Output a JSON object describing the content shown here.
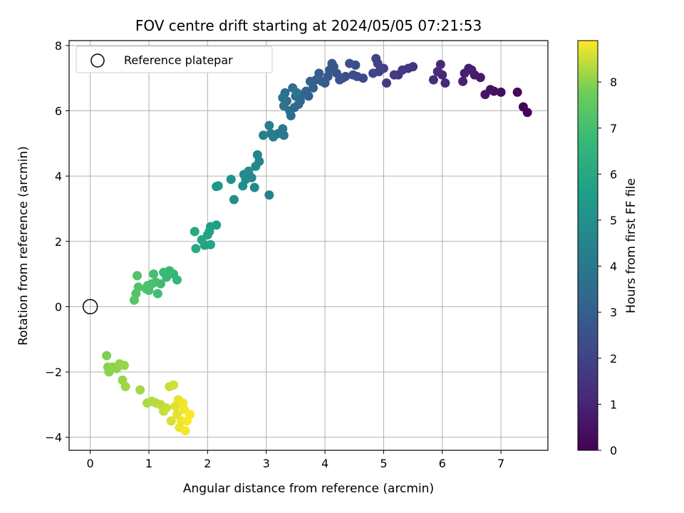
{
  "chart_data": {
    "type": "scatter",
    "title": "FOV centre drift starting at 2024/05/05 07:21:53",
    "xlabel": "Angular distance from reference (arcmin)",
    "ylabel": "Rotation from reference (arcmin)",
    "xlim": [
      -0.36,
      7.8
    ],
    "ylim": [
      -4.4,
      8.15
    ],
    "xticks": [
      0,
      1,
      2,
      3,
      4,
      5,
      6,
      7
    ],
    "yticks": [
      -4,
      -2,
      0,
      2,
      4,
      6,
      8
    ],
    "xtick_labels": [
      "0",
      "1",
      "2",
      "3",
      "4",
      "5",
      "6",
      "7"
    ],
    "ytick_labels": [
      "−4",
      "−2",
      "0",
      "2",
      "4",
      "6",
      "8"
    ],
    "grid": true,
    "legend": {
      "placement": "top-left",
      "entries": [
        "Reference platepar"
      ]
    },
    "reference_point": {
      "x": 0,
      "y": 0
    },
    "colorbar": {
      "label": "Hours from first FF file",
      "colormap": "viridis",
      "range": [
        0,
        8.9
      ],
      "ticks": [
        0,
        1,
        2,
        3,
        4,
        5,
        6,
        7,
        8
      ],
      "tick_labels": [
        "0",
        "1",
        "2",
        "3",
        "4",
        "5",
        "6",
        "7",
        "8"
      ]
    },
    "points": [
      [
        7.45,
        5.95,
        0.05
      ],
      [
        7.38,
        6.12,
        0.1
      ],
      [
        7.28,
        6.57,
        0.2
      ],
      [
        7.0,
        6.57,
        0.35
      ],
      [
        6.88,
        6.6,
        0.45
      ],
      [
        6.82,
        6.65,
        0.5
      ],
      [
        6.73,
        6.5,
        0.55
      ],
      [
        6.65,
        7.02,
        0.7
      ],
      [
        6.55,
        7.1,
        0.75
      ],
      [
        6.5,
        7.25,
        0.8
      ],
      [
        6.45,
        7.3,
        0.85
      ],
      [
        6.38,
        7.15,
        0.9
      ],
      [
        6.35,
        6.9,
        0.95
      ],
      [
        6.05,
        6.85,
        1.1
      ],
      [
        6.0,
        7.1,
        1.15
      ],
      [
        5.97,
        7.42,
        1.2
      ],
      [
        5.92,
        7.2,
        1.25
      ],
      [
        5.85,
        6.95,
        1.3
      ],
      [
        5.5,
        7.35,
        1.5
      ],
      [
        5.42,
        7.3,
        1.55
      ],
      [
        5.32,
        7.25,
        1.6
      ],
      [
        5.25,
        7.1,
        1.65
      ],
      [
        5.18,
        7.1,
        1.7
      ],
      [
        5.05,
        6.85,
        1.8
      ],
      [
        5.0,
        7.3,
        1.9
      ],
      [
        4.92,
        7.2,
        1.95
      ],
      [
        4.9,
        7.45,
        2.0
      ],
      [
        4.87,
        7.6,
        2.05
      ],
      [
        4.82,
        7.15,
        2.1
      ],
      [
        4.65,
        7.0,
        2.2
      ],
      [
        4.55,
        7.05,
        2.25
      ],
      [
        4.52,
        7.4,
        2.3
      ],
      [
        4.48,
        7.1,
        2.35
      ],
      [
        4.42,
        7.45,
        2.4
      ],
      [
        4.35,
        7.05,
        2.45
      ],
      [
        4.3,
        7.0,
        2.5
      ],
      [
        4.25,
        6.95,
        2.55
      ],
      [
        4.2,
        7.15,
        2.6
      ],
      [
        4.15,
        7.35,
        2.65
      ],
      [
        4.12,
        7.45,
        2.7
      ],
      [
        4.08,
        7.25,
        2.75
      ],
      [
        4.05,
        7.05,
        2.8
      ],
      [
        4.0,
        6.85,
        2.85
      ],
      [
        3.95,
        6.9,
        2.9
      ],
      [
        3.9,
        7.15,
        2.95
      ],
      [
        3.85,
        6.95,
        3.0
      ],
      [
        3.8,
        6.7,
        3.05
      ],
      [
        3.75,
        6.9,
        3.1
      ],
      [
        3.72,
        6.45,
        3.15
      ],
      [
        3.68,
        6.6,
        3.2
      ],
      [
        3.62,
        6.5,
        3.25
      ],
      [
        3.58,
        6.3,
        3.3
      ],
      [
        3.55,
        6.2,
        3.35
      ],
      [
        3.5,
        6.45,
        3.4
      ],
      [
        3.48,
        6.1,
        3.45
      ],
      [
        3.45,
        6.7,
        3.5
      ],
      [
        3.42,
        5.85,
        3.55
      ],
      [
        3.4,
        6.0,
        3.6
      ],
      [
        3.35,
        6.3,
        3.65
      ],
      [
        3.32,
        6.55,
        3.7
      ],
      [
        3.3,
        6.15,
        3.75
      ],
      [
        3.28,
        6.4,
        3.8
      ],
      [
        3.52,
        6.55,
        3.85
      ],
      [
        3.3,
        5.25,
        4.0
      ],
      [
        3.28,
        5.45,
        4.05
      ],
      [
        3.2,
        5.3,
        4.1
      ],
      [
        3.12,
        5.2,
        4.2
      ],
      [
        3.08,
        5.3,
        4.25
      ],
      [
        3.05,
        5.55,
        4.3
      ],
      [
        2.95,
        5.25,
        4.35
      ],
      [
        3.05,
        3.42,
        4.4
      ],
      [
        2.88,
        4.45,
        4.5
      ],
      [
        2.85,
        4.65,
        4.55
      ],
      [
        2.82,
        4.3,
        4.6
      ],
      [
        2.8,
        3.65,
        4.65
      ],
      [
        2.75,
        3.95,
        4.7
      ],
      [
        2.7,
        4.15,
        4.75
      ],
      [
        2.65,
        3.9,
        4.8
      ],
      [
        2.62,
        4.05,
        4.85
      ],
      [
        2.6,
        3.7,
        4.9
      ],
      [
        2.45,
        3.28,
        5.0
      ],
      [
        2.4,
        3.9,
        5.05
      ],
      [
        2.15,
        3.68,
        5.2
      ],
      [
        2.18,
        3.7,
        5.25
      ],
      [
        2.15,
        2.5,
        5.6
      ],
      [
        2.05,
        2.45,
        5.65
      ],
      [
        2.03,
        2.3,
        5.7
      ],
      [
        2.0,
        2.2,
        5.75
      ],
      [
        2.05,
        1.9,
        5.8
      ],
      [
        1.95,
        1.88,
        5.85
      ],
      [
        1.9,
        2.05,
        5.9
      ],
      [
        1.78,
        2.3,
        6.0
      ],
      [
        1.8,
        1.78,
        6.05
      ],
      [
        1.48,
        0.82,
        6.6
      ],
      [
        1.42,
        1.0,
        6.65
      ],
      [
        1.35,
        1.1,
        6.7
      ],
      [
        1.3,
        0.9,
        6.75
      ],
      [
        1.25,
        1.05,
        6.8
      ],
      [
        1.2,
        0.7,
        6.85
      ],
      [
        1.15,
        0.4,
        6.9
      ],
      [
        1.12,
        0.75,
        6.95
      ],
      [
        1.08,
        1.0,
        7.0
      ],
      [
        1.05,
        0.7,
        7.05
      ],
      [
        1.0,
        0.5,
        7.1
      ],
      [
        0.98,
        0.65,
        7.12
      ],
      [
        0.95,
        0.55,
        7.15
      ],
      [
        0.82,
        0.6,
        7.2
      ],
      [
        0.8,
        0.95,
        7.25
      ],
      [
        0.78,
        0.4,
        7.3
      ],
      [
        0.75,
        0.2,
        7.35
      ],
      [
        0.28,
        -1.5,
        7.9
      ],
      [
        0.3,
        -1.85,
        7.95
      ],
      [
        0.32,
        -2.0,
        8.0
      ],
      [
        0.38,
        -1.85,
        8.02
      ],
      [
        0.45,
        -1.9,
        8.05
      ],
      [
        0.5,
        -1.75,
        8.08
      ],
      [
        0.58,
        -1.8,
        8.1
      ],
      [
        0.55,
        -2.25,
        8.12
      ],
      [
        0.6,
        -2.45,
        8.15
      ],
      [
        0.85,
        -2.55,
        8.2
      ],
      [
        0.97,
        -2.95,
        8.25
      ],
      [
        1.05,
        -2.9,
        8.3
      ],
      [
        1.12,
        -2.95,
        8.35
      ],
      [
        1.2,
        -3.0,
        8.4
      ],
      [
        1.25,
        -3.2,
        8.45
      ],
      [
        1.3,
        -3.1,
        8.5
      ],
      [
        1.35,
        -2.45,
        8.52
      ],
      [
        1.42,
        -2.4,
        8.55
      ],
      [
        1.38,
        -3.5,
        8.6
      ],
      [
        1.45,
        -3.05,
        8.65
      ],
      [
        1.48,
        -3.3,
        8.7
      ],
      [
        1.5,
        -2.85,
        8.72
      ],
      [
        1.52,
        -3.7,
        8.75
      ],
      [
        1.55,
        -3.5,
        8.78
      ],
      [
        1.58,
        -2.95,
        8.8
      ],
      [
        1.6,
        -3.15,
        8.82
      ],
      [
        1.62,
        -3.8,
        8.85
      ],
      [
        1.65,
        -3.5,
        8.87
      ],
      [
        1.7,
        -3.3,
        8.9
      ]
    ]
  }
}
